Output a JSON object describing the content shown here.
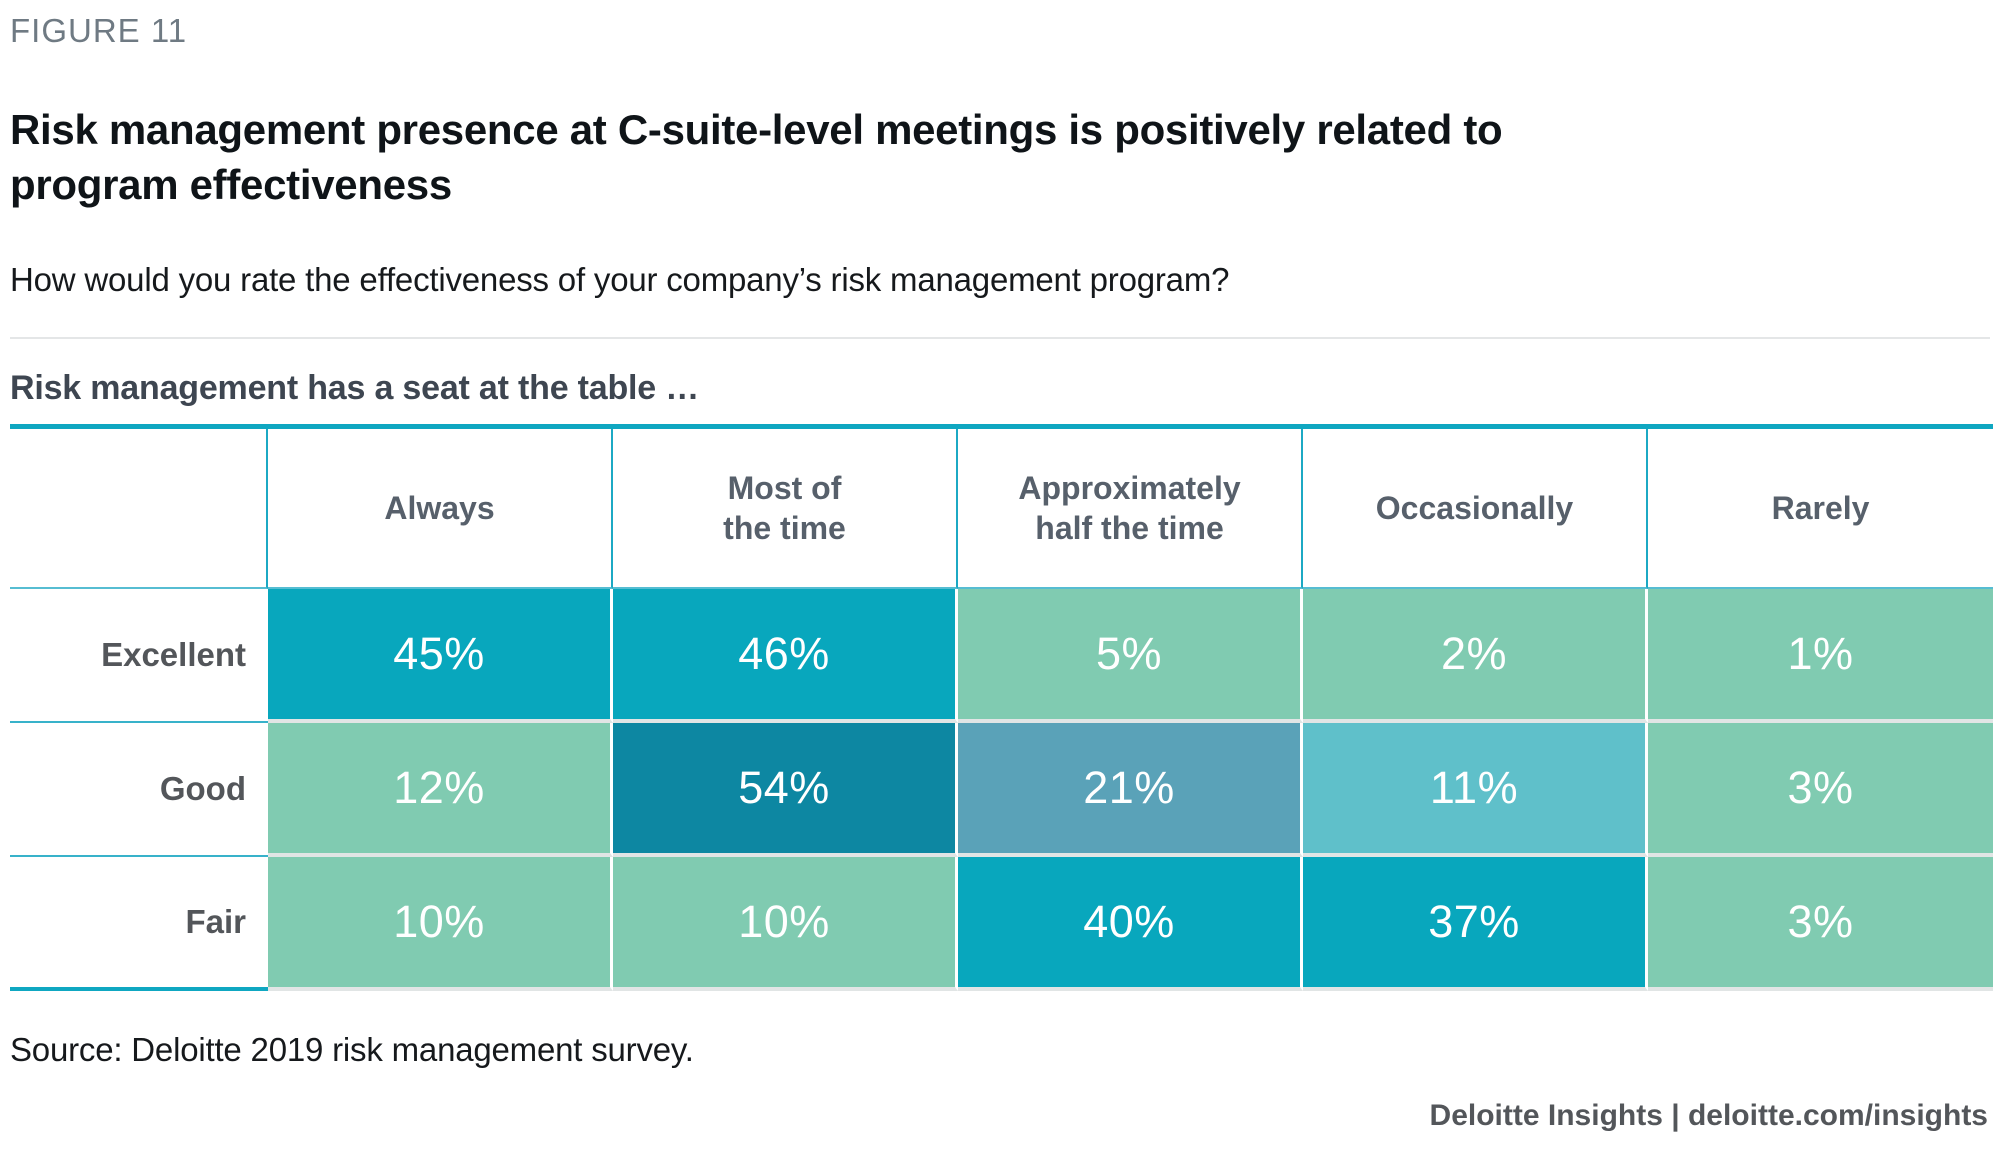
{
  "figure": {
    "label": "FIGURE 11"
  },
  "title": "Risk management presence at C-suite-level meetings is positively related to program effectiveness",
  "question": "How would you rate the effectiveness of your company’s risk management program?",
  "section_header": "Risk management has a seat at the table …",
  "table": {
    "column_headers": [
      "Always",
      "Most of\nthe time",
      "Approximately\nhalf the time",
      "Occasionally",
      "Rarely"
    ],
    "rows": [
      {
        "label": "Excellent",
        "cells": [
          {
            "value": "45%",
            "color": "#08a7bd"
          },
          {
            "value": "46%",
            "color": "#08a7bd"
          },
          {
            "value": "5%",
            "color": "#80cbb1"
          },
          {
            "value": "2%",
            "color": "#80cbb1"
          },
          {
            "value": "1%",
            "color": "#80cbb1"
          }
        ]
      },
      {
        "label": "Good",
        "cells": [
          {
            "value": "12%",
            "color": "#80cbb1"
          },
          {
            "value": "54%",
            "color": "#0d87a2"
          },
          {
            "value": "21%",
            "color": "#5aa2b8"
          },
          {
            "value": "11%",
            "color": "#5fc0ca"
          },
          {
            "value": "3%",
            "color": "#80cbb1"
          }
        ]
      },
      {
        "label": "Fair",
        "cells": [
          {
            "value": "10%",
            "color": "#80cbb1"
          },
          {
            "value": "10%",
            "color": "#80cbb1"
          },
          {
            "value": "40%",
            "color": "#08a7bd"
          },
          {
            "value": "37%",
            "color": "#08a7bd"
          },
          {
            "value": "3%",
            "color": "#80cbb1"
          }
        ]
      }
    ]
  },
  "source": "Source: Deloitte 2019 risk management survey.",
  "credit": "Deloitte Insights | deloitte.com/insights",
  "colors": {
    "accent_teal": "#0fa7c1",
    "cell_strong_teal": "#08a7bd",
    "cell_dark_teal": "#0d87a2",
    "cell_light_green": "#80cbb1",
    "cell_steel_blue": "#5aa2b8",
    "cell_light_cyan": "#5fc0ca",
    "header_text": "#57606b",
    "row_label_text": "#53565a"
  },
  "chart_data": {
    "type": "heatmap",
    "title": "Risk management presence at C-suite-level meetings is positively related to program effectiveness",
    "subtitle": "How would you rate the effectiveness of your company’s risk management program?",
    "x_axis_label": "Risk management has a seat at the table …",
    "x_categories": [
      "Always",
      "Most of the time",
      "Approximately half the time",
      "Occasionally",
      "Rarely"
    ],
    "y_categories": [
      "Excellent",
      "Good",
      "Fair"
    ],
    "unit": "%",
    "values_percent": [
      [
        45,
        46,
        5,
        2,
        1
      ],
      [
        12,
        54,
        21,
        11,
        3
      ],
      [
        10,
        10,
        40,
        37,
        3
      ]
    ],
    "source": "Source: Deloitte 2019 risk management survey."
  }
}
